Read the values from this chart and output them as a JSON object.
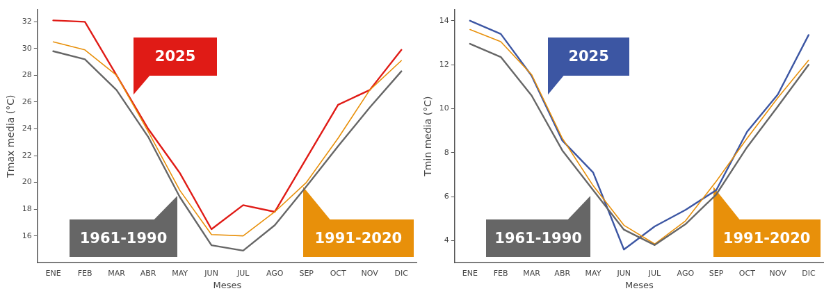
{
  "chart_data": [
    {
      "type": "line",
      "xlabel": "Meses",
      "ylabel": "Tmax media (°C)",
      "categories": [
        "ENE",
        "FEB",
        "MAR",
        "ABR",
        "MAY",
        "JUN",
        "JUL",
        "AGO",
        "SEP",
        "OCT",
        "NOV",
        "DIC"
      ],
      "ylim": [
        14.0,
        32.9
      ],
      "yticks": [
        16,
        18,
        20,
        22,
        24,
        26,
        28,
        30,
        32
      ],
      "grid": false,
      "legend": "bottom",
      "marker": "none",
      "series": [
        {
          "name": "1961-1990",
          "color": "#666666",
          "values": [
            29.8,
            29.2,
            26.9,
            23.4,
            18.9,
            15.3,
            14.9,
            16.8,
            19.7,
            22.7,
            25.6,
            28.3
          ]
        },
        {
          "name": "1991-2020",
          "color": "#e8900a",
          "values": [
            30.5,
            29.9,
            28.0,
            23.8,
            19.4,
            16.1,
            16.0,
            17.8,
            20.0,
            23.3,
            26.9,
            29.1
          ]
        },
        {
          "name": "2025",
          "color": "#e01b16",
          "values": [
            32.1,
            32.0,
            28.0,
            24.0,
            20.7,
            16.5,
            18.3,
            17.8,
            21.8,
            25.8,
            26.9,
            29.9
          ]
        }
      ]
    },
    {
      "type": "line",
      "xlabel": "Meses",
      "ylabel": "Tmin media (°C)",
      "categories": [
        "ENE",
        "FEB",
        "MAR",
        "ABR",
        "MAY",
        "JUN",
        "JUL",
        "AGO",
        "SEP",
        "OCT",
        "NOV",
        "DIC"
      ],
      "ylim": [
        3.0,
        14.5
      ],
      "yticks": [
        4,
        6,
        8,
        10,
        12,
        14
      ],
      "grid": false,
      "legend": "bottom",
      "marker": "none",
      "series": [
        {
          "name": "1961-1990",
          "color": "#666666",
          "values": [
            12.95,
            12.35,
            10.6,
            8.1,
            6.3,
            4.5,
            3.8,
            4.75,
            6.1,
            8.25,
            10.1,
            12.0
          ]
        },
        {
          "name": "1991-2020",
          "color": "#e8900a",
          "values": [
            13.6,
            13.05,
            11.55,
            8.65,
            6.5,
            4.7,
            3.85,
            4.9,
            6.7,
            8.65,
            10.5,
            12.2
          ]
        },
        {
          "name": "2025",
          "color": "#3c56a3",
          "values": [
            14.0,
            13.4,
            11.5,
            8.55,
            7.1,
            3.6,
            4.65,
            5.4,
            6.3,
            8.95,
            10.65,
            13.35
          ]
        }
      ]
    }
  ]
}
